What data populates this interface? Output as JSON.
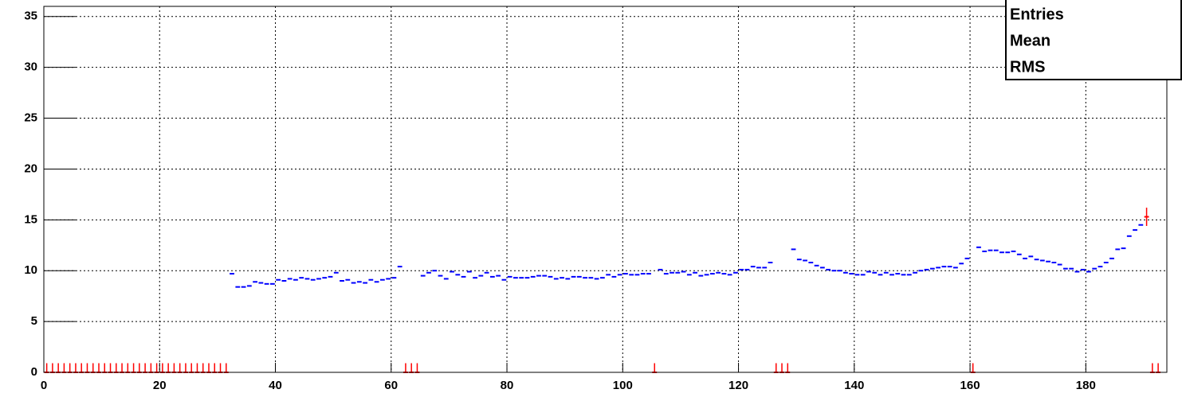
{
  "chart_data": {
    "type": "histogram-points",
    "xlim": [
      0,
      194
    ],
    "ylim": [
      0,
      36
    ],
    "xticks": [
      0,
      20,
      40,
      60,
      80,
      100,
      120,
      140,
      160,
      180
    ],
    "yticks": [
      0,
      5,
      10,
      15,
      20,
      25,
      30,
      35
    ],
    "grid": true,
    "stats_labels": [
      "Entries",
      "Mean",
      "RMS"
    ],
    "series": [
      {
        "color": "#0000ff",
        "x": [
          32.5,
          33.5,
          34.5,
          35.5,
          36.5,
          37.5,
          38.5,
          39.5,
          40.5,
          41.5,
          42.5,
          43.5,
          44.5,
          45.5,
          46.5,
          47.5,
          48.5,
          49.5,
          50.5,
          51.5,
          52.5,
          53.5,
          54.5,
          55.5,
          56.5,
          57.5,
          58.5,
          59.5,
          60.5,
          61.5,
          65.5,
          66.5,
          67.5,
          68.5,
          69.5,
          70.5,
          71.5,
          72.5,
          73.5,
          74.5,
          75.5,
          76.5,
          77.5,
          78.5,
          79.5,
          80.5,
          81.5,
          82.5,
          83.5,
          84.5,
          85.5,
          86.5,
          87.5,
          88.5,
          89.5,
          90.5,
          91.5,
          92.5,
          93.5,
          94.5,
          95.5,
          96.5,
          97.5,
          98.5,
          99.5,
          100.5,
          101.5,
          102.5,
          103.5,
          104.5,
          106.5,
          107.5,
          108.5,
          109.5,
          110.5,
          111.5,
          112.5,
          113.5,
          114.5,
          115.5,
          116.5,
          117.5,
          118.5,
          119.5,
          120.5,
          121.5,
          122.5,
          123.5,
          124.5,
          125.5,
          129.5,
          130.5,
          131.5,
          132.5,
          133.5,
          134.5,
          135.5,
          136.5,
          137.5,
          138.5,
          139.5,
          140.5,
          141.5,
          142.5,
          143.5,
          144.5,
          145.5,
          146.5,
          147.5,
          148.5,
          149.5,
          150.5,
          151.5,
          152.5,
          153.5,
          154.5,
          155.5,
          156.5,
          157.5,
          158.5,
          159.5,
          161.5,
          162.5,
          163.5,
          164.5,
          165.5,
          166.5,
          167.5,
          168.5,
          169.5,
          170.5,
          171.5,
          172.5,
          173.5,
          174.5,
          175.5,
          176.5,
          177.5,
          178.5,
          179.5,
          180.5,
          181.5,
          182.5,
          183.5,
          184.5,
          185.5,
          186.5,
          187.5,
          188.5,
          189.5
        ],
        "values": [
          9.7,
          8.4,
          8.4,
          8.5,
          8.9,
          8.8,
          8.7,
          8.7,
          9.1,
          9.0,
          9.2,
          9.1,
          9.3,
          9.2,
          9.1,
          9.2,
          9.3,
          9.4,
          9.8,
          9.0,
          9.1,
          8.8,
          8.9,
          8.8,
          9.1,
          8.9,
          9.1,
          9.2,
          9.3,
          10.4,
          9.5,
          9.8,
          10.0,
          9.5,
          9.2,
          9.9,
          9.6,
          9.4,
          9.9,
          9.3,
          9.5,
          9.8,
          9.4,
          9.5,
          9.1,
          9.4,
          9.3,
          9.3,
          9.3,
          9.4,
          9.5,
          9.5,
          9.4,
          9.2,
          9.3,
          9.2,
          9.4,
          9.4,
          9.3,
          9.3,
          9.2,
          9.3,
          9.6,
          9.4,
          9.6,
          9.7,
          9.6,
          9.6,
          9.7,
          9.7,
          10.1,
          9.7,
          9.8,
          9.8,
          9.9,
          9.6,
          9.8,
          9.5,
          9.6,
          9.7,
          9.8,
          9.7,
          9.6,
          9.8,
          10.1,
          10.1,
          10.4,
          10.3,
          10.3,
          10.8,
          12.1,
          11.1,
          11.0,
          10.8,
          10.5,
          10.3,
          10.1,
          10.0,
          10.0,
          9.8,
          9.7,
          9.6,
          9.6,
          9.9,
          9.8,
          9.6,
          9.8,
          9.6,
          9.7,
          9.6,
          9.6,
          9.8,
          10.0,
          10.1,
          10.2,
          10.3,
          10.4,
          10.4,
          10.3,
          10.7,
          11.2,
          12.3,
          11.9,
          12.0,
          12.0,
          11.8,
          11.8,
          11.9,
          11.6,
          11.2,
          11.4,
          11.1,
          11.0,
          10.9,
          10.8,
          10.6,
          10.2,
          10.2,
          9.9,
          10.1,
          9.9,
          10.2,
          10.4,
          10.8,
          11.2,
          12.1,
          12.2,
          13.4,
          14.0,
          14.5
        ]
      },
      {
        "color": "#ff0000",
        "x": [
          0.5,
          1.5,
          2.5,
          3.5,
          4.5,
          5.5,
          6.5,
          7.5,
          8.5,
          9.5,
          10.5,
          11.5,
          12.5,
          13.5,
          14.5,
          15.5,
          16.5,
          17.5,
          18.5,
          19.5,
          20.5,
          21.5,
          22.5,
          23.5,
          24.5,
          25.5,
          26.5,
          27.5,
          28.5,
          29.5,
          30.5,
          31.5,
          62.5,
          63.5,
          64.5,
          105.5,
          126.5,
          127.5,
          128.5,
          160.5,
          190.5,
          191.5,
          192.5
        ],
        "values": [
          0,
          0,
          0,
          0,
          0,
          0,
          0,
          0,
          0,
          0,
          0,
          0,
          0,
          0,
          0,
          0,
          0,
          0,
          0,
          0,
          0,
          0,
          0,
          0,
          0,
          0,
          0,
          0,
          0,
          0,
          0,
          0,
          0,
          0,
          0,
          0,
          0,
          0,
          0,
          0,
          15.3,
          0,
          0
        ],
        "errors": [
          0.9,
          0.9,
          0.9,
          0.9,
          0.9,
          0.9,
          0.9,
          0.9,
          0.9,
          0.9,
          0.9,
          0.9,
          0.9,
          0.9,
          0.9,
          0.9,
          0.9,
          0.9,
          0.9,
          0.9,
          0.9,
          0.9,
          0.9,
          0.9,
          0.9,
          0.9,
          0.9,
          0.9,
          0.9,
          0.9,
          0.9,
          0.9,
          0.9,
          0.9,
          0.9,
          0.9,
          0.9,
          0.9,
          0.9,
          0.9,
          0.9,
          0.9,
          0.9
        ]
      }
    ]
  }
}
